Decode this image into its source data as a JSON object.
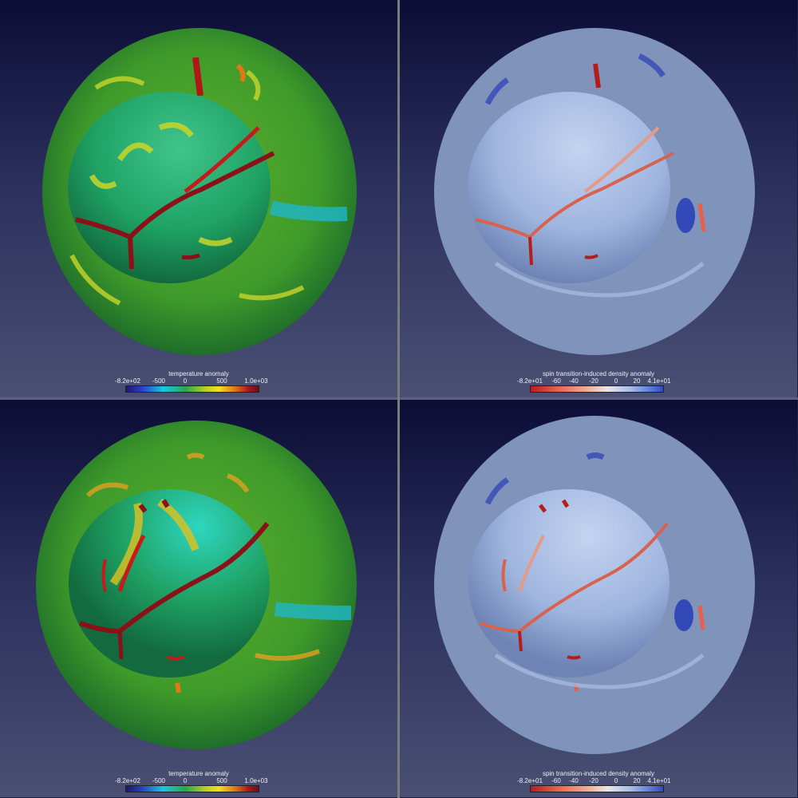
{
  "panels": [
    {
      "id": "top-left",
      "colorbar": {
        "title": "temperature anomaly",
        "ticks": [
          "-8.2e+02",
          "-500",
          "0",
          "500",
          "1.0e+03"
        ]
      }
    },
    {
      "id": "top-right",
      "colorbar": {
        "title": "spin transition-induced density anomaly",
        "ticks": [
          "-8.2e+01",
          "-60",
          "-40",
          "-20",
          "0",
          "20",
          "4.1e+01"
        ]
      }
    },
    {
      "id": "bottom-left",
      "colorbar": {
        "title": "temperature anomaly",
        "ticks": [
          "-8.2e+02",
          "-500",
          "0",
          "500",
          "1.0e+03"
        ]
      }
    },
    {
      "id": "bottom-right",
      "colorbar": {
        "title": "spin transition-induced density anomaly",
        "ticks": [
          "-8.2e+01",
          "-60",
          "-40",
          "-20",
          "0",
          "20",
          "4.1e+01"
        ]
      }
    }
  ],
  "colors": {
    "background_top": "#0b0d35",
    "background_bottom": "#4a4f73",
    "temperature_shell": "#3f9a2c",
    "temperature_core": "#23a36a",
    "density_shell": "#7f93bb",
    "density_core": "#9fb6e0",
    "hot_feature": "#b01818",
    "cold_feature": "#2a4fc4"
  }
}
